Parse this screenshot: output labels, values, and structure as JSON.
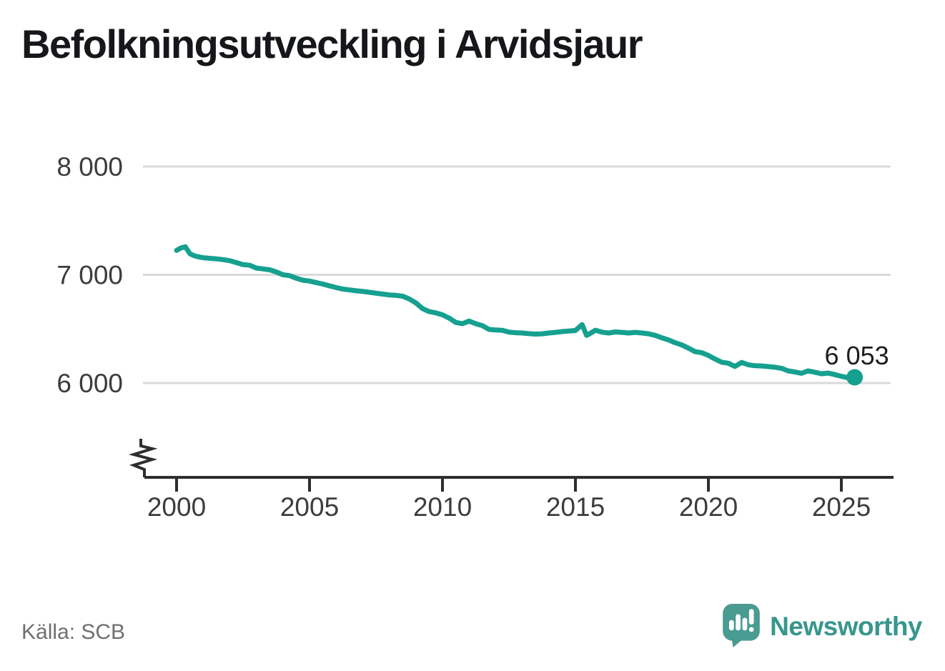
{
  "page": {
    "title": "Befolkningsutveckling i Arvidsjaur",
    "source_note": "Källa: SCB"
  },
  "branding": {
    "wordmark": "Newsworthy",
    "icon": "newsworthy-speech-bubble-bar-chart-icon"
  },
  "colors": {
    "line": "#16A08F",
    "marker": "#16A08F",
    "grid": "#DADADA",
    "axis": "#2E2E2E",
    "tick_text": "#3C3C3C",
    "title_text": "#15171A",
    "source_text": "#6F6F6F",
    "annotation_text": "#1D1D1D",
    "logo_icon": "#4A9B92",
    "logo_text": "#37968D",
    "background": "#FFFFFF"
  },
  "chart_data": {
    "type": "line",
    "title": "Befolkningsutveckling i Arvidsjaur",
    "xlabel": "",
    "ylabel": "",
    "grid": "horizontal",
    "legend": "none",
    "axis_break": true,
    "xlim": [
      1998.75,
      2026.95
    ],
    "ylim_displayed": [
      5550,
      8050
    ],
    "x_ticks": [
      {
        "value": 2000,
        "label": "2000"
      },
      {
        "value": 2005,
        "label": "2005"
      },
      {
        "value": 2010,
        "label": "2010"
      },
      {
        "value": 2015,
        "label": "2015"
      },
      {
        "value": 2020,
        "label": "2020"
      },
      {
        "value": 2025,
        "label": "2025"
      }
    ],
    "y_ticks": [
      {
        "value": 8000,
        "label": "8 000"
      },
      {
        "value": 7000,
        "label": "7 000"
      },
      {
        "value": 6000,
        "label": "6 000"
      }
    ],
    "last_point": {
      "x": 2025.5,
      "value": 6053,
      "label": "6 053"
    },
    "series": [
      {
        "name": "Befolkning",
        "color": "#16A08F",
        "points": [
          [
            2000.0,
            7225
          ],
          [
            2000.17,
            7248
          ],
          [
            2000.33,
            7258
          ],
          [
            2000.5,
            7195
          ],
          [
            2000.67,
            7175
          ],
          [
            2000.83,
            7165
          ],
          [
            2001.0,
            7158
          ],
          [
            2001.25,
            7152
          ],
          [
            2001.5,
            7147
          ],
          [
            2001.75,
            7140
          ],
          [
            2002.0,
            7130
          ],
          [
            2002.25,
            7112
          ],
          [
            2002.5,
            7094
          ],
          [
            2002.75,
            7088
          ],
          [
            2003.0,
            7062
          ],
          [
            2003.25,
            7054
          ],
          [
            2003.5,
            7046
          ],
          [
            2003.75,
            7026
          ],
          [
            2004.0,
            7000
          ],
          [
            2004.25,
            6992
          ],
          [
            2004.5,
            6968
          ],
          [
            2004.75,
            6950
          ],
          [
            2005.0,
            6942
          ],
          [
            2005.25,
            6928
          ],
          [
            2005.5,
            6914
          ],
          [
            2005.75,
            6898
          ],
          [
            2006.0,
            6882
          ],
          [
            2006.25,
            6868
          ],
          [
            2006.5,
            6860
          ],
          [
            2006.75,
            6852
          ],
          [
            2007.0,
            6846
          ],
          [
            2007.25,
            6838
          ],
          [
            2007.5,
            6830
          ],
          [
            2007.75,
            6822
          ],
          [
            2008.0,
            6814
          ],
          [
            2008.25,
            6810
          ],
          [
            2008.5,
            6802
          ],
          [
            2008.75,
            6776
          ],
          [
            2009.0,
            6740
          ],
          [
            2009.25,
            6688
          ],
          [
            2009.5,
            6660
          ],
          [
            2009.75,
            6648
          ],
          [
            2010.0,
            6630
          ],
          [
            2010.25,
            6600
          ],
          [
            2010.5,
            6560
          ],
          [
            2010.75,
            6548
          ],
          [
            2011.0,
            6572
          ],
          [
            2011.25,
            6548
          ],
          [
            2011.5,
            6530
          ],
          [
            2011.75,
            6495
          ],
          [
            2012.0,
            6490
          ],
          [
            2012.25,
            6487
          ],
          [
            2012.5,
            6470
          ],
          [
            2012.75,
            6465
          ],
          [
            2013.0,
            6462
          ],
          [
            2013.25,
            6456
          ],
          [
            2013.5,
            6452
          ],
          [
            2013.75,
            6455
          ],
          [
            2014.0,
            6462
          ],
          [
            2014.25,
            6468
          ],
          [
            2014.5,
            6475
          ],
          [
            2014.75,
            6480
          ],
          [
            2015.0,
            6485
          ],
          [
            2015.25,
            6540
          ],
          [
            2015.42,
            6440
          ],
          [
            2015.58,
            6462
          ],
          [
            2015.75,
            6488
          ],
          [
            2016.0,
            6470
          ],
          [
            2016.25,
            6462
          ],
          [
            2016.5,
            6472
          ],
          [
            2016.75,
            6468
          ],
          [
            2017.0,
            6462
          ],
          [
            2017.25,
            6468
          ],
          [
            2017.5,
            6462
          ],
          [
            2017.75,
            6455
          ],
          [
            2018.0,
            6440
          ],
          [
            2018.25,
            6418
          ],
          [
            2018.5,
            6398
          ],
          [
            2018.75,
            6372
          ],
          [
            2019.0,
            6352
          ],
          [
            2019.25,
            6322
          ],
          [
            2019.5,
            6290
          ],
          [
            2019.75,
            6280
          ],
          [
            2020.0,
            6255
          ],
          [
            2020.25,
            6222
          ],
          [
            2020.5,
            6192
          ],
          [
            2020.75,
            6183
          ],
          [
            2021.0,
            6153
          ],
          [
            2021.25,
            6190
          ],
          [
            2021.5,
            6168
          ],
          [
            2021.75,
            6160
          ],
          [
            2022.0,
            6158
          ],
          [
            2022.25,
            6152
          ],
          [
            2022.5,
            6146
          ],
          [
            2022.75,
            6136
          ],
          [
            2023.0,
            6112
          ],
          [
            2023.25,
            6102
          ],
          [
            2023.5,
            6090
          ],
          [
            2023.75,
            6112
          ],
          [
            2024.0,
            6100
          ],
          [
            2024.25,
            6086
          ],
          [
            2024.5,
            6092
          ],
          [
            2024.75,
            6078
          ],
          [
            2025.0,
            6062
          ],
          [
            2025.25,
            6048
          ],
          [
            2025.5,
            6053
          ]
        ]
      }
    ]
  }
}
